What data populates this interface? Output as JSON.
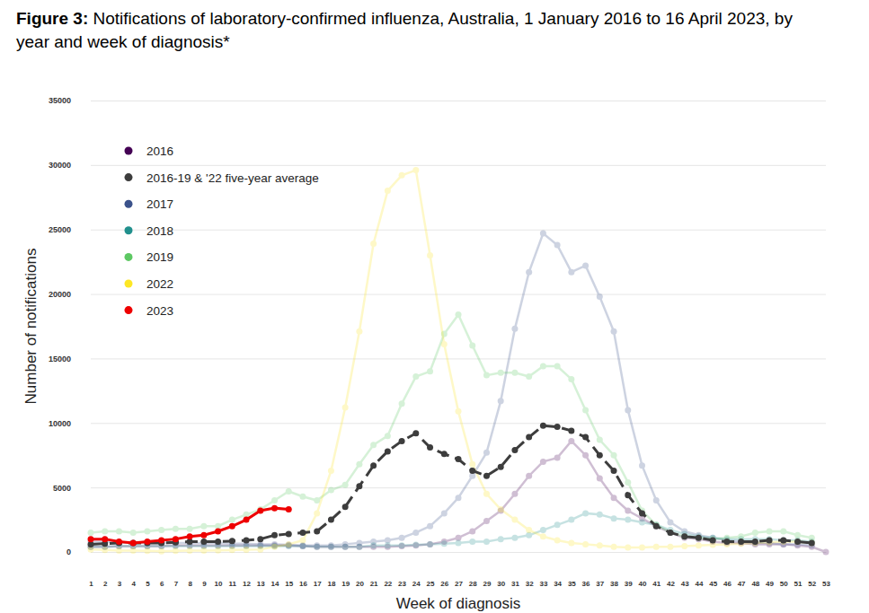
{
  "chart_data": {
    "type": "line",
    "title": "Figure 3: Notifications of laboratory-confirmed influenza, Australia, 1 January 2016 to 16 April 2023, by year and week of diagnosis*",
    "x_label": "Week of diagnosis",
    "y_label": "Number of notifications",
    "x": [
      1,
      2,
      3,
      4,
      5,
      6,
      7,
      8,
      9,
      10,
      11,
      12,
      13,
      14,
      15,
      16,
      17,
      18,
      19,
      20,
      21,
      22,
      23,
      24,
      25,
      26,
      27,
      28,
      29,
      30,
      31,
      32,
      33,
      34,
      35,
      36,
      37,
      38,
      39,
      40,
      41,
      42,
      43,
      44,
      45,
      46,
      47,
      48,
      49,
      50,
      51,
      52,
      53
    ],
    "xlim": [
      1,
      53
    ],
    "xticks": [
      1,
      2,
      3,
      4,
      5,
      6,
      7,
      8,
      9,
      10,
      11,
      12,
      13,
      14,
      15,
      16,
      17,
      18,
      19,
      20,
      21,
      22,
      23,
      24,
      25,
      26,
      27,
      28,
      29,
      30,
      31,
      32,
      33,
      34,
      35,
      36,
      37,
      38,
      39,
      40,
      41,
      42,
      43,
      44,
      45,
      46,
      47,
      48,
      49,
      50,
      51,
      52,
      53
    ],
    "ylim": [
      0,
      35000
    ],
    "yticks": [
      0,
      5000,
      10000,
      15000,
      20000,
      25000,
      30000,
      35000
    ],
    "grid": true,
    "legend": "upper left",
    "series": [
      {
        "name": "2016",
        "color": "#440154",
        "marker": "circle",
        "line_style": "solid",
        "values": [
          400,
          400,
          450,
          450,
          450,
          450,
          500,
          500,
          500,
          500,
          500,
          500,
          500,
          500,
          500,
          450,
          400,
          400,
          400,
          400,
          400,
          400,
          450,
          500,
          600,
          800,
          1100,
          1600,
          2400,
          3200,
          4500,
          5900,
          7000,
          7300,
          8600,
          7500,
          5700,
          4200,
          3200,
          2600,
          2000,
          1500,
          1100,
          1000,
          800,
          700,
          700,
          600,
          600,
          600,
          500,
          400,
          0
        ]
      },
      {
        "name": "2016-19 & '22 five-year average",
        "color": "#3d3d3d",
        "marker": "circle",
        "line_style": "dashed",
        "values": [
          600,
          650,
          700,
          700,
          700,
          700,
          750,
          800,
          800,
          800,
          850,
          900,
          1000,
          1300,
          1400,
          1500,
          1600,
          2500,
          3500,
          5100,
          6700,
          7800,
          8600,
          9200,
          8100,
          7600,
          7200,
          6300,
          5900,
          6600,
          7900,
          8900,
          9800,
          9700,
          9400,
          8900,
          7500,
          6300,
          4400,
          3000,
          2000,
          1500,
          1200,
          1100,
          900,
          800,
          800,
          800,
          900,
          900,
          800,
          700,
          null
        ]
      },
      {
        "name": "2017",
        "color": "#3b528b",
        "marker": "circle",
        "line_style": "solid",
        "values": [
          800,
          800,
          750,
          700,
          700,
          700,
          700,
          700,
          700,
          700,
          650,
          650,
          600,
          600,
          550,
          500,
          500,
          500,
          600,
          700,
          800,
          900,
          1100,
          1500,
          2000,
          3000,
          4200,
          5900,
          7700,
          11700,
          17300,
          21700,
          24700,
          23800,
          21700,
          22200,
          19800,
          17100,
          11000,
          6700,
          4000,
          2300,
          1600,
          1300,
          1100,
          900,
          800,
          700,
          700,
          600,
          600,
          500,
          null
        ]
      },
      {
        "name": "2018",
        "color": "#21908d",
        "marker": "circle",
        "line_style": "solid",
        "values": [
          400,
          400,
          450,
          450,
          450,
          450,
          450,
          450,
          450,
          450,
          450,
          450,
          450,
          450,
          450,
          450,
          400,
          400,
          400,
          400,
          500,
          500,
          500,
          550,
          600,
          650,
          700,
          800,
          800,
          1000,
          1100,
          1300,
          1700,
          2100,
          2500,
          3000,
          2900,
          2600,
          2500,
          2300,
          2100,
          1700,
          1400,
          1200,
          1100,
          1000,
          1000,
          1000,
          1000,
          900,
          900,
          800,
          null
        ]
      },
      {
        "name": "2019",
        "color": "#5dc863",
        "marker": "circle",
        "line_style": "solid",
        "values": [
          1500,
          1600,
          1600,
          1500,
          1600,
          1700,
          1800,
          1800,
          2000,
          2000,
          2500,
          2900,
          3300,
          4000,
          4700,
          4300,
          4000,
          4800,
          5200,
          6800,
          8300,
          9000,
          11500,
          13600,
          14000,
          16900,
          18400,
          16000,
          13700,
          13900,
          13900,
          13600,
          14400,
          14400,
          13400,
          11000,
          8700,
          7500,
          5400,
          3200,
          2100,
          1500,
          1200,
          1100,
          1000,
          1100,
          1200,
          1500,
          1600,
          1600,
          1300,
          1100,
          null
        ]
      },
      {
        "name": "2022",
        "color": "#fde725",
        "marker": "circle",
        "line_style": "solid",
        "values": [
          200,
          150,
          100,
          100,
          80,
          50,
          80,
          100,
          100,
          120,
          150,
          180,
          200,
          400,
          600,
          900,
          3000,
          6300,
          11200,
          17100,
          23900,
          28000,
          29200,
          29600,
          23000,
          16100,
          10900,
          6800,
          4500,
          3300,
          2500,
          1700,
          1200,
          900,
          700,
          600,
          500,
          400,
          350,
          350,
          400,
          400,
          450,
          500,
          550,
          600,
          650,
          700,
          750,
          800,
          800,
          700,
          null
        ]
      },
      {
        "name": "2023",
        "color": "#ee0000",
        "marker": "circle",
        "line_style": "solid",
        "values": [
          1000,
          1000,
          800,
          700,
          800,
          900,
          1000,
          1200,
          1300,
          1600,
          2000,
          2500,
          3200,
          3400,
          3300,
          null,
          null,
          null,
          null,
          null,
          null,
          null,
          null,
          null,
          null,
          null,
          null,
          null,
          null,
          null,
          null,
          null,
          null,
          null,
          null,
          null,
          null,
          null,
          null,
          null,
          null,
          null,
          null,
          null,
          null,
          null,
          null,
          null,
          null,
          null,
          null,
          null,
          null
        ]
      }
    ]
  }
}
